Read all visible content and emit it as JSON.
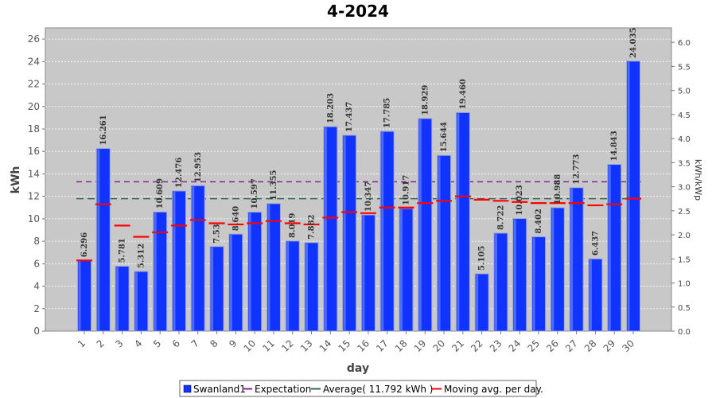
{
  "chart_data": {
    "type": "bar",
    "title": "4-2024",
    "xlabel": "day",
    "ylabel": "kWh",
    "ylabel_right": "kWh/kWp",
    "ylim": [
      0,
      27
    ],
    "ylim_right": [
      0,
      6.3
    ],
    "y_ticks": [
      0,
      2,
      4,
      6,
      8,
      10,
      12,
      14,
      16,
      18,
      20,
      22,
      24,
      26
    ],
    "y_ticks_right": [
      "0.0",
      "0.5",
      "1.0",
      "1.5",
      "2.0",
      "2.5",
      "3.0",
      "3.5",
      "4.0",
      "4.5",
      "5.0",
      "5.5",
      "6.0"
    ],
    "categories": [
      "1",
      "2",
      "3",
      "4",
      "5",
      "6",
      "7",
      "8",
      "9",
      "10",
      "11",
      "12",
      "13",
      "14",
      "15",
      "16",
      "17",
      "18",
      "19",
      "20",
      "21",
      "22",
      "23",
      "24",
      "25",
      "26",
      "27",
      "28",
      "29",
      "30"
    ],
    "series": [
      {
        "name": "Swanland1",
        "color": "#1133ff",
        "values": [
          6.296,
          16.261,
          5.781,
          5.312,
          10.609,
          12.476,
          12.953,
          7.53,
          8.64,
          10.597,
          11.355,
          8.019,
          7.882,
          18.203,
          17.437,
          10.347,
          17.785,
          10.917,
          18.929,
          15.644,
          19.46,
          5.105,
          8.722,
          10.023,
          8.402,
          10.988,
          12.773,
          6.437,
          14.843,
          24.035
        ],
        "labels": [
          "6.296",
          "16.261",
          "5.781",
          "5.312",
          "10.609",
          "12.476",
          "12.953",
          "7.53",
          "8.640",
          "10.597",
          "11.355",
          "8.019",
          "7.882",
          "18.203",
          "17.437",
          "10.347",
          "17.785",
          "10.917",
          "18.929",
          "15.644",
          "19.460",
          "5.105",
          "8.722",
          "10.023",
          "8.402",
          "10.988",
          "12.773",
          "6.437",
          "14.843",
          "24.035"
        ]
      },
      {
        "name": "Moving avg. per day.",
        "color": "#ff0000",
        "values": [
          6.3,
          11.3,
          9.4,
          8.4,
          8.8,
          9.4,
          9.9,
          9.6,
          9.5,
          9.6,
          9.8,
          9.6,
          9.5,
          10.1,
          10.6,
          10.5,
          11.0,
          11.0,
          11.4,
          11.6,
          12.0,
          11.7,
          11.6,
          11.5,
          11.4,
          11.4,
          11.4,
          11.2,
          11.3,
          11.8
        ]
      }
    ],
    "expectation": {
      "name": "Expectation",
      "value": 13.3,
      "color": "#882299"
    },
    "average": {
      "name": "Average( 11.792 kWh )",
      "value": 11.792,
      "color": "#336655"
    },
    "legend_position": "bottom",
    "grid": true
  }
}
